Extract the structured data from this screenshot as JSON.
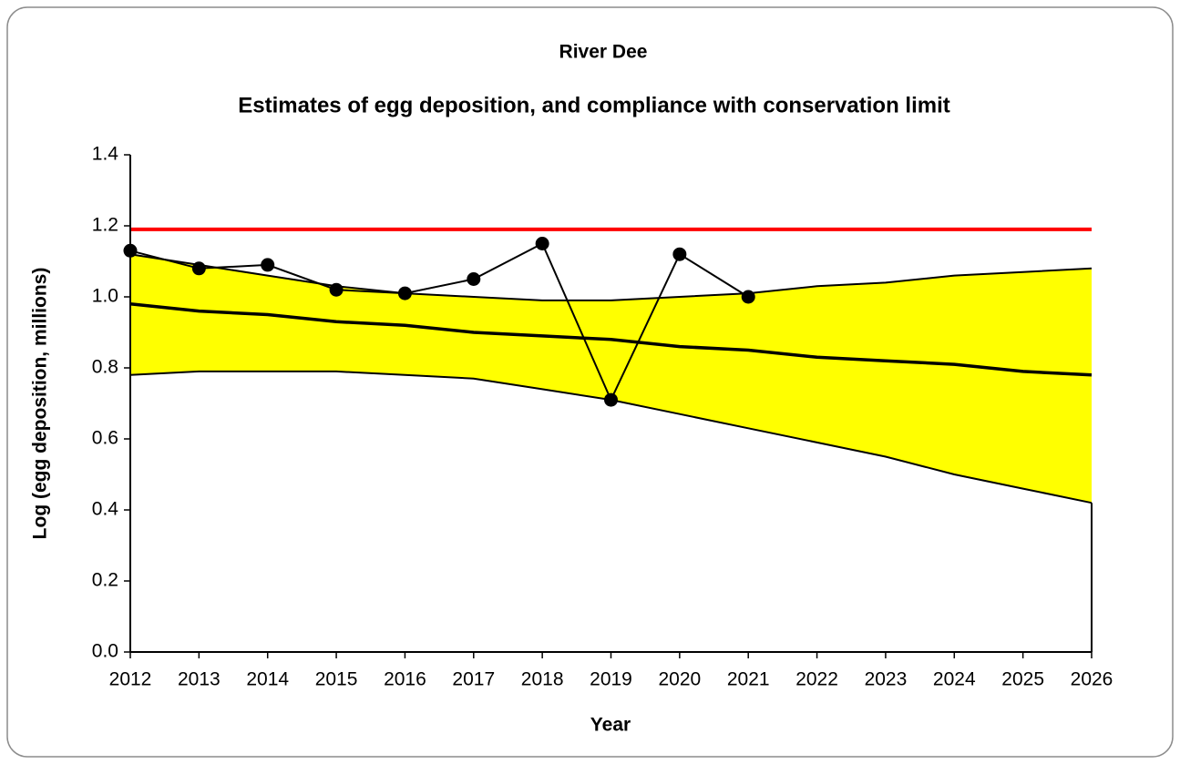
{
  "chart_data": {
    "type": "line",
    "title": "River Dee",
    "subtitle": "Estimates of egg deposition, and compliance with conservation limit",
    "xlabel": "Year",
    "ylabel": "Log (egg deposition,  millions)",
    "x": [
      2012,
      2013,
      2014,
      2015,
      2016,
      2017,
      2018,
      2019,
      2020,
      2021,
      2022,
      2023,
      2024,
      2025,
      2026
    ],
    "band": {
      "color": "#ffff00",
      "upper": [
        1.12,
        1.09,
        1.06,
        1.03,
        1.01,
        1.0,
        0.99,
        0.99,
        1.0,
        1.01,
        1.03,
        1.04,
        1.06,
        1.07,
        1.08
      ],
      "lower": [
        0.78,
        0.79,
        0.79,
        0.79,
        0.78,
        0.77,
        0.74,
        0.71,
        0.67,
        0.63,
        0.59,
        0.55,
        0.5,
        0.46,
        0.42
      ]
    },
    "series": [
      {
        "color": "#000000",
        "markers": true,
        "values": [
          1.13,
          1.08,
          1.09,
          1.02,
          1.01,
          1.05,
          1.15,
          0.71,
          1.12,
          1.0,
          null,
          null,
          null,
          null,
          null
        ]
      },
      {
        "color": "#000000",
        "markers": false,
        "values": [
          0.98,
          0.96,
          0.95,
          0.93,
          0.92,
          0.9,
          0.89,
          0.88,
          0.86,
          0.85,
          0.83,
          0.82,
          0.81,
          0.79,
          0.78
        ]
      }
    ],
    "reference_line": {
      "value": 1.19,
      "color": "#ff0000"
    },
    "xlim": [
      2012,
      2026
    ],
    "xticks": [
      2012,
      2013,
      2014,
      2015,
      2016,
      2017,
      2018,
      2019,
      2020,
      2021,
      2022,
      2023,
      2024,
      2025,
      2026
    ],
    "ylim": [
      0,
      1.4
    ],
    "yticks": [
      {
        "value": 0,
        "label": "0.0"
      },
      0.2,
      0.4,
      0.6,
      0.8,
      {
        "value": 1,
        "label": "1.0"
      },
      1.2,
      1.4
    ],
    "grid": false
  }
}
